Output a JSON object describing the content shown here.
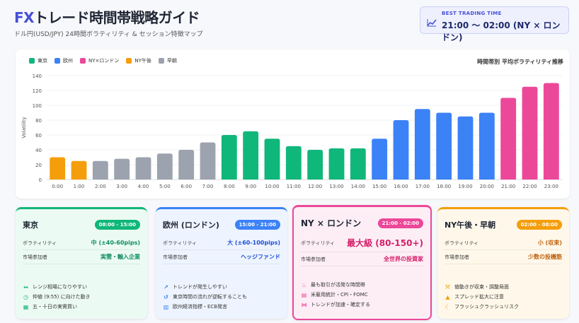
{
  "header": {
    "title_fx": "FX",
    "title_rest": "トレード時間帯戦略ガイド",
    "subtitle": "ドル円(USD/JPY) 24時間ボラティリティ & セッション特徴マップ"
  },
  "best_time": {
    "label": "BEST TRADING TIME",
    "value": "21:00 〜 02:00 (NY × ロンドン)",
    "icon": "trend-line-icon"
  },
  "legend": [
    {
      "label": "東京",
      "color": "#10b77a"
    },
    {
      "label": "欧州",
      "color": "#3b82f6"
    },
    {
      "label": "NY×ロンドン",
      "color": "#ec4899"
    },
    {
      "label": "NY午後",
      "color": "#f59e0b"
    },
    {
      "label": "早朝",
      "color": "#9ca3af"
    }
  ],
  "chart_data": {
    "type": "bar",
    "title": "時間帯別 平均ボラティリティ推移",
    "ylabel": "Volatility",
    "xlabel": "",
    "ylim": [
      0,
      140
    ],
    "yticks": [
      0,
      20,
      40,
      60,
      80,
      100,
      120,
      140
    ],
    "grid": true,
    "legend_position": "top-left",
    "categories": [
      "0:00",
      "1:00",
      "2:00",
      "3:00",
      "4:00",
      "5:00",
      "6:00",
      "7:00",
      "8:00",
      "9:00",
      "10:00",
      "11:00",
      "12:00",
      "13:00",
      "14:00",
      "15:00",
      "16:00",
      "17:00",
      "18:00",
      "19:00",
      "20:00",
      "21:00",
      "22:00",
      "23:00"
    ],
    "values": [
      30,
      25,
      25,
      28,
      30,
      35,
      40,
      50,
      60,
      65,
      55,
      45,
      40,
      42,
      42,
      55,
      80,
      95,
      90,
      85,
      90,
      110,
      125,
      130
    ],
    "colors": [
      "#f59e0b",
      "#f59e0b",
      "#9ca3af",
      "#9ca3af",
      "#9ca3af",
      "#9ca3af",
      "#9ca3af",
      "#9ca3af",
      "#10b77a",
      "#10b77a",
      "#10b77a",
      "#10b77a",
      "#10b77a",
      "#10b77a",
      "#10b77a",
      "#3b82f6",
      "#3b82f6",
      "#3b82f6",
      "#3b82f6",
      "#3b82f6",
      "#3b82f6",
      "#ec4899",
      "#ec4899",
      "#ec4899"
    ]
  },
  "cards": [
    {
      "name": "東京",
      "badge": "08:00 - 15:00",
      "accent": "#10b77a",
      "bg": "#ecfaf4",
      "value_color": "#0e8f5e",
      "vol_label": "ボラティリティ",
      "vol_value": "中 (±40-60pips)",
      "part_label": "市場参加者",
      "part_value": "実需・輸入企業",
      "notes": [
        {
          "icon": "arrows-horizontal-icon",
          "glyph": "↔",
          "text": "レンジ相場になりやすい"
        },
        {
          "icon": "clock-icon",
          "glyph": "◷",
          "text": "仲値 (9:55) に向けた動き"
        },
        {
          "icon": "calendar-icon",
          "glyph": "▦",
          "text": "五・十日の実需買い"
        }
      ]
    },
    {
      "name": "欧州 (ロンドン)",
      "badge": "15:00 - 21:00",
      "accent": "#3b82f6",
      "bg": "#eef4ff",
      "value_color": "#1d4fd8",
      "vol_label": "ボラティリティ",
      "vol_value": "大 (±60-100pips)",
      "part_label": "市場参加者",
      "part_value": "ヘッジファンド",
      "notes": [
        {
          "icon": "chart-line-icon",
          "glyph": "↗",
          "text": "トレンドが発生しやすい"
        },
        {
          "icon": "undo-icon",
          "glyph": "↺",
          "text": "東京時間の流れが逆転することも"
        },
        {
          "icon": "bank-icon",
          "glyph": "▥",
          "text": "欧州経済指標・ECB発言"
        }
      ]
    },
    {
      "name": "NY × ロンドン",
      "badge": "21:00 - 02:00",
      "accent": "#ec4899",
      "bg": "#fdeef6",
      "value_color": "#d61f69",
      "vol_label": "ボラティリティ",
      "vol_value": "最大級 (80-150+)",
      "part_label": "市場参加者",
      "part_value": "全世界の投資家",
      "notes": [
        {
          "icon": "fire-icon",
          "glyph": "♨",
          "text": "最も取引が活発な時間帯"
        },
        {
          "icon": "document-icon",
          "glyph": "▤",
          "text": "米雇用統計・CPI・FOMC"
        },
        {
          "icon": "network-icon",
          "glyph": "⋈",
          "text": "トレンドが加速・確定する"
        }
      ]
    },
    {
      "name": "NY午後・早朝",
      "badge": "02:00 - 08:00",
      "accent": "#f59e0b",
      "bg": "#fff8ea",
      "value_color": "#c2610c",
      "vol_label": "ボラティリティ",
      "vol_value": "小 (収束)",
      "part_label": "市場参加者",
      "part_value": "少数の投機筋",
      "notes": [
        {
          "icon": "compress-icon",
          "glyph": "⤧",
          "text": "値動きが収束・調整局面"
        },
        {
          "icon": "warning-icon",
          "glyph": "▲",
          "text": "スプレッド拡大に注意"
        },
        {
          "icon": "moon-icon",
          "glyph": "☾",
          "text": "フラッシュクラッシュリスク"
        }
      ]
    }
  ]
}
